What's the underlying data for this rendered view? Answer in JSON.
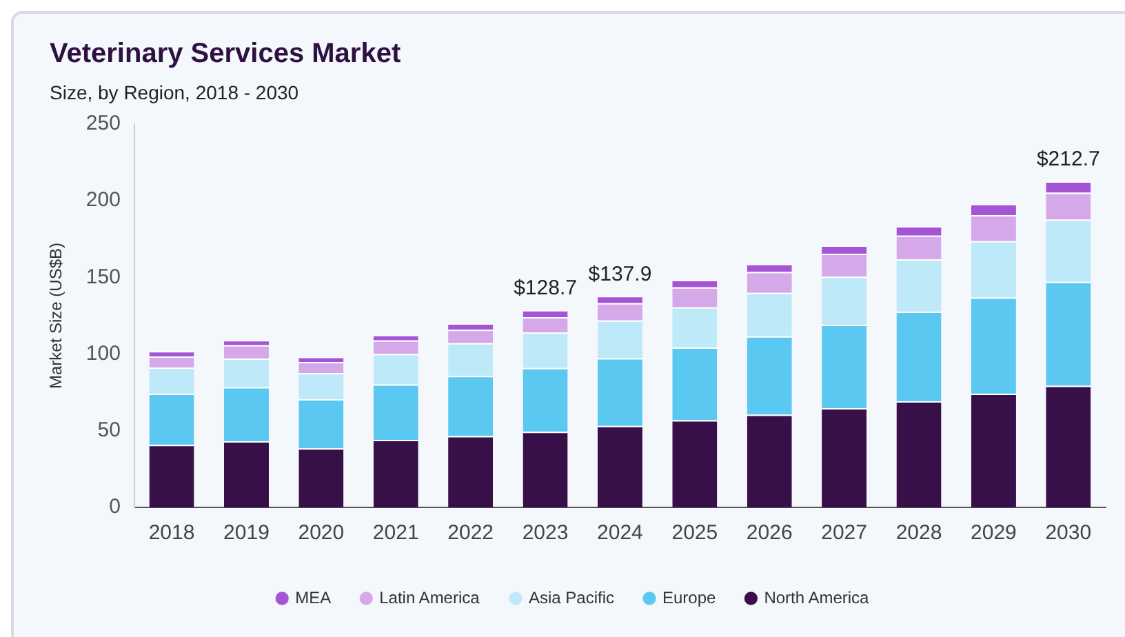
{
  "chart_data": {
    "type": "bar",
    "title": "Veterinary Services Market",
    "subtitle": "Size, by Region, 2018 - 2030",
    "ylabel": "Market Size (US$B)",
    "categories": [
      "2018",
      "2019",
      "2020",
      "2021",
      "2022",
      "2023",
      "2024",
      "2025",
      "2026",
      "2027",
      "2028",
      "2029",
      "2030"
    ],
    "stacked": true,
    "ylim": [
      0,
      250
    ],
    "yticks": [
      0,
      50,
      100,
      150,
      200,
      250
    ],
    "grid": false,
    "legend": "bottom",
    "series": [
      {
        "name": "North America",
        "color": "#37104a",
        "values": [
          40.8,
          43.2,
          38.6,
          44.1,
          46.5,
          49.3,
          53.2,
          56.9,
          60.5,
          64.8,
          69.3,
          74.2,
          79.4
        ]
      },
      {
        "name": "Europe",
        "color": "#5bc8f2",
        "values": [
          33.4,
          35.3,
          32.0,
          36.2,
          39.3,
          41.6,
          44.1,
          47.4,
          51.1,
          54.4,
          58.4,
          62.7,
          67.8
        ]
      },
      {
        "name": "Asia Pacific",
        "color": "#bde9f8",
        "values": [
          17.0,
          18.5,
          17.0,
          19.8,
          21.3,
          23.2,
          24.7,
          26.2,
          28.3,
          31.3,
          34.1,
          36.8,
          40.5
        ]
      },
      {
        "name": "Latin America",
        "color": "#d5a8ea",
        "values": [
          7.3,
          8.8,
          7.3,
          8.8,
          8.8,
          10.0,
          11.2,
          13.1,
          13.7,
          15.0,
          15.5,
          17.0,
          17.6
        ]
      },
      {
        "name": "MEA",
        "color": "#a455d6",
        "values": [
          3.4,
          3.4,
          3.3,
          3.6,
          4.2,
          4.6,
          4.7,
          4.8,
          5.2,
          5.4,
          6.1,
          7.3,
          7.4
        ]
      }
    ],
    "totals": [
      null,
      null,
      null,
      null,
      null,
      "$128.7",
      "$137.9",
      null,
      null,
      null,
      null,
      null,
      "$212.7"
    ]
  }
}
